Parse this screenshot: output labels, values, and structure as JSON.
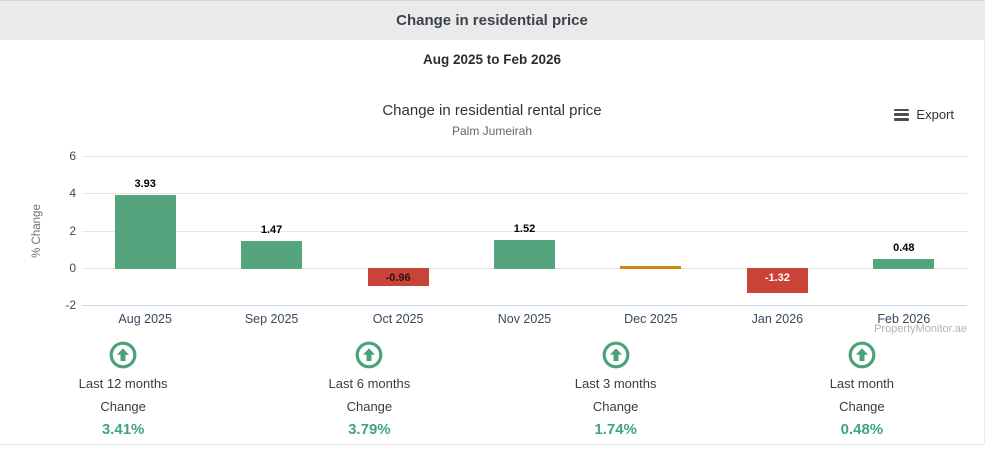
{
  "header": {
    "title": "Change in residential price"
  },
  "range_subtitle": "Aug 2025 to Feb 2026",
  "chart": {
    "title": "Change in residential rental price",
    "subtitle": "Palm Jumeirah",
    "export_label": "Export",
    "y_axis_title": "% Change",
    "watermark": "PropertyMonitor.ae"
  },
  "chart_data": {
    "type": "bar",
    "title": "Change in residential rental price",
    "subtitle": "Palm Jumeirah",
    "categories": [
      "Aug 2025",
      "Sep 2025",
      "Oct 2025",
      "Nov 2025",
      "Dec 2025",
      "Jan 2026",
      "Feb 2026"
    ],
    "values": [
      3.93,
      1.47,
      -0.96,
      1.52,
      0.05,
      -1.32,
      0.48
    ],
    "data_labels": [
      "3.93",
      "1.47",
      "-0.96",
      "1.52",
      "",
      "-1.32",
      "0.48"
    ],
    "data_label_colors": [
      "#000000",
      "#000000",
      "#2b1512",
      "#000000",
      "",
      "#ffffff",
      "#000000"
    ],
    "bar_colors": [
      "#54a57d",
      "#54a57d",
      "#c94338",
      "#54a57d",
      "#c8890e",
      "#c94338",
      "#54a57d"
    ],
    "xlabel": "",
    "ylabel": "% Change",
    "ylim": [
      -2,
      6
    ],
    "yticks": [
      6,
      4,
      2,
      0,
      -2
    ],
    "grid": true,
    "legend": false
  },
  "stats": [
    {
      "period": "Last 12 months",
      "label": "Change",
      "value": "3.41%"
    },
    {
      "period": "Last 6 months",
      "label": "Change",
      "value": "3.79%"
    },
    {
      "period": "Last 3 months",
      "label": "Change",
      "value": "1.74%"
    },
    {
      "period": "Last month",
      "label": "Change",
      "value": "0.48%"
    }
  ],
  "colors": {
    "positive_bar": "#54a57d",
    "negative_bar": "#c94338",
    "neutral_bar": "#c8890e",
    "gridline": "#e6e6e6",
    "axis_line": "#ccd6eb",
    "stat_value_green": "#3fa57e",
    "header_bg": "#e9eaeb"
  }
}
